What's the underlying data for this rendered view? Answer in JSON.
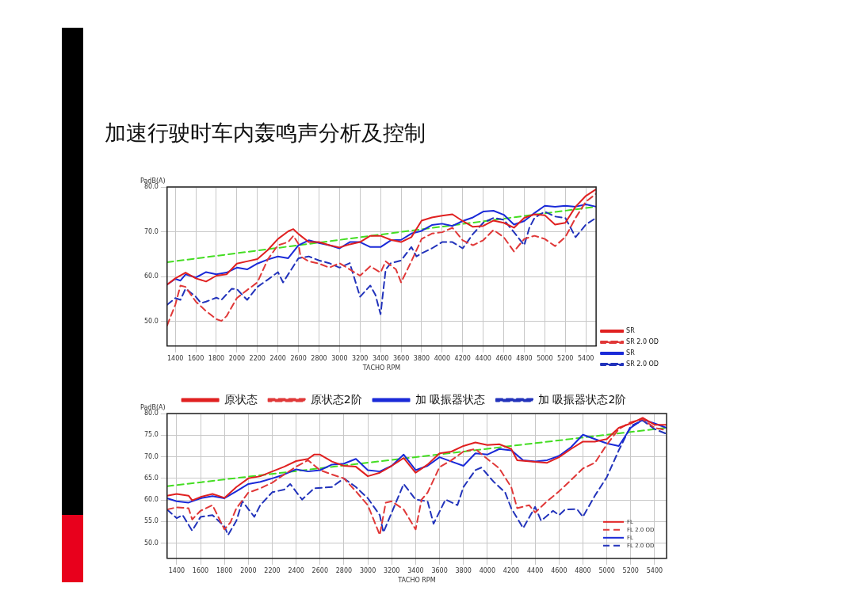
{
  "chart_data": [
    {
      "type": "line",
      "title": "加速行驶时车内轰鸣声分析及控制",
      "xlabel": "TACHO RPM",
      "ylabel": "PadB(A)",
      "xlim": [
        1320,
        5500
      ],
      "ylim": [
        44.5,
        80
      ],
      "xticks": [
        1400,
        1600,
        1800,
        2000,
        2200,
        2400,
        2600,
        2800,
        3000,
        3200,
        3400,
        3600,
        3800,
        4000,
        4200,
        4400,
        4600,
        4800,
        5000,
        5200,
        5400
      ],
      "yticks": [
        {
          "value": 50,
          "label": "50.0"
        },
        {
          "value": 60,
          "label": "60.0"
        },
        {
          "value": 70,
          "label": "70.0"
        },
        {
          "value": 80,
          "label": "80.0"
        }
      ],
      "grid": true,
      "legend": "bottom right",
      "marker": "none",
      "series": [
        {
          "name": "SR",
          "color": "#e02020",
          "line_style": "solid",
          "x": [
            1320,
            1400,
            1500,
            1600,
            1700,
            1800,
            1900,
            2000,
            2100,
            2200,
            2300,
            2400,
            2500,
            2550,
            2600,
            2700,
            2800,
            2900,
            3000,
            3100,
            3200,
            3300,
            3400,
            3500,
            3600,
            3700,
            3800,
            3900,
            4000,
            4100,
            4200,
            4300,
            4400,
            4500,
            4600,
            4700,
            4800,
            4900,
            5000,
            5100,
            5200,
            5300,
            5400,
            5500
          ],
          "values": [
            58.2,
            59.6,
            60.9,
            59.6,
            58.9,
            60.2,
            60.5,
            62.9,
            63.4,
            63.9,
            65.9,
            68.4,
            70.1,
            70.6,
            69.5,
            67.7,
            67.7,
            67.0,
            66.5,
            67.2,
            67.7,
            69.1,
            69.1,
            68.2,
            67.7,
            68.8,
            72.5,
            73.2,
            73.6,
            73.9,
            72.4,
            71.1,
            71.3,
            72.5,
            72.0,
            70.9,
            73.1,
            73.9,
            73.7,
            71.6,
            72.0,
            75.6,
            78.0,
            79.5
          ]
        },
        {
          "name": "SR 2.0 OD",
          "color": "#e03838",
          "line_style": "dashed",
          "x": [
            1320,
            1400,
            1450,
            1500,
            1600,
            1700,
            1800,
            1850,
            1900,
            2000,
            2100,
            2200,
            2300,
            2400,
            2500,
            2550,
            2600,
            2620,
            2700,
            2800,
            2900,
            3000,
            3100,
            3200,
            3300,
            3400,
            3450,
            3550,
            3600,
            3700,
            3800,
            3900,
            4000,
            4100,
            4200,
            4300,
            4400,
            4500,
            4600,
            4700,
            4800,
            4900,
            5000,
            5100,
            5200,
            5300,
            5400,
            5500
          ],
          "values": [
            49.1,
            53.7,
            58.0,
            57.7,
            54.4,
            52.3,
            50.5,
            50.1,
            51.2,
            55.2,
            57.0,
            58.7,
            63.8,
            67.0,
            67.7,
            69.1,
            67.3,
            64.5,
            63.4,
            62.9,
            62.0,
            63.0,
            61.6,
            60.2,
            62.3,
            60.9,
            63.4,
            61.6,
            58.7,
            63.4,
            68.4,
            69.6,
            69.9,
            70.9,
            68.1,
            67.0,
            68.1,
            70.4,
            68.8,
            65.6,
            68.4,
            69.1,
            68.4,
            66.8,
            68.8,
            73.1,
            76.7,
            78.5
          ]
        },
        {
          "name": "SR",
          "color": "#1a2ad8",
          "line_style": "solid",
          "x": [
            1320,
            1400,
            1450,
            1500,
            1600,
            1700,
            1800,
            1900,
            2000,
            2100,
            2200,
            2300,
            2400,
            2500,
            2600,
            2700,
            2800,
            2900,
            3000,
            3100,
            3200,
            3300,
            3400,
            3500,
            3600,
            3700,
            3800,
            3900,
            4000,
            4100,
            4200,
            4300,
            4400,
            4500,
            4600,
            4700,
            4800,
            4900,
            5000,
            5100,
            5200,
            5300,
            5400,
            5500
          ],
          "values": [
            58.2,
            59.5,
            59.1,
            60.5,
            59.8,
            61.0,
            60.5,
            60.9,
            62.0,
            61.6,
            62.9,
            63.8,
            64.5,
            64.1,
            67.0,
            68.1,
            67.5,
            67.0,
            66.3,
            67.7,
            67.7,
            66.6,
            66.6,
            68.1,
            68.2,
            69.6,
            70.2,
            71.5,
            71.8,
            71.3,
            72.4,
            73.2,
            74.5,
            74.7,
            73.8,
            71.6,
            72.4,
            74.2,
            75.8,
            75.6,
            75.8,
            75.6,
            76.1,
            75.6
          ]
        },
        {
          "name": "SR 2.0 OD",
          "color": "#2233bb",
          "line_style": "dashed",
          "x": [
            1320,
            1400,
            1450,
            1500,
            1600,
            1650,
            1700,
            1800,
            1850,
            1950,
            2000,
            2100,
            2200,
            2300,
            2400,
            2450,
            2600,
            2700,
            2800,
            2900,
            3000,
            3100,
            3200,
            3300,
            3350,
            3400,
            3450,
            3500,
            3600,
            3700,
            3750,
            3800,
            3900,
            4000,
            4100,
            4200,
            4300,
            4400,
            4500,
            4600,
            4700,
            4800,
            4850,
            4900,
            5000,
            5100,
            5200,
            5300,
            5400,
            5500
          ],
          "values": [
            53.7,
            55.2,
            54.8,
            57.3,
            55.5,
            54.1,
            54.4,
            55.3,
            54.8,
            57.3,
            57.2,
            54.8,
            57.7,
            59.3,
            61.0,
            58.7,
            64.1,
            64.5,
            63.6,
            63.0,
            62.0,
            63.0,
            55.5,
            58.0,
            55.9,
            51.6,
            61.6,
            63.0,
            63.6,
            66.6,
            64.5,
            65.2,
            66.3,
            67.7,
            67.7,
            66.3,
            69.5,
            72.0,
            73.1,
            72.7,
            69.9,
            67.0,
            70.9,
            73.1,
            74.5,
            73.4,
            73.1,
            68.8,
            71.6,
            73.1
          ]
        },
        {
          "color": "#44dd22",
          "line_style": "dashed",
          "x": [
            1320,
            5500
          ],
          "values": [
            63.2,
            75.6
          ]
        }
      ]
    },
    {
      "type": "line",
      "xlabel": "TACHO RPM",
      "ylabel": "PadB(A)",
      "xlim": [
        1320,
        5500
      ],
      "ylim": [
        46.5,
        80
      ],
      "xticks": [
        1400,
        1600,
        1800,
        2000,
        2200,
        2400,
        2600,
        2800,
        3000,
        3200,
        3400,
        3600,
        3800,
        4000,
        4200,
        4400,
        4600,
        4800,
        5000,
        5200,
        5400
      ],
      "yticks": [
        {
          "value": 50,
          "label": "50.0"
        },
        {
          "value": 55,
          "label": "55.0"
        },
        {
          "value": 60,
          "label": "60.0"
        },
        {
          "value": 65,
          "label": "65.0"
        },
        {
          "value": 70,
          "label": "70.0"
        },
        {
          "value": 75,
          "label": "75.0"
        },
        {
          "value": 80,
          "label": "80.0"
        }
      ],
      "grid": true,
      "legend": "top",
      "marker": "none",
      "annotations": [
        "FL",
        "FL 2.0 OD",
        "FL",
        "FL 2.0 OD"
      ],
      "series": [
        {
          "name": "原状态",
          "color": "#e02020",
          "line_style": "solid",
          "x": [
            1320,
            1400,
            1500,
            1530,
            1600,
            1700,
            1800,
            1900,
            2000,
            2100,
            2200,
            2300,
            2400,
            2500,
            2550,
            2600,
            2700,
            2800,
            2900,
            3000,
            3100,
            3200,
            3300,
            3400,
            3500,
            3600,
            3700,
            3800,
            3900,
            4000,
            4100,
            4200,
            4250,
            4400,
            4500,
            4600,
            4700,
            4800,
            4900,
            5000,
            5100,
            5200,
            5300,
            5400,
            5500
          ],
          "values": [
            61.0,
            61.4,
            61.0,
            59.9,
            60.7,
            61.4,
            60.5,
            63.0,
            65.0,
            65.5,
            66.6,
            67.7,
            69.0,
            69.5,
            70.5,
            70.5,
            68.9,
            67.9,
            67.7,
            65.5,
            66.3,
            67.9,
            69.7,
            66.3,
            68.2,
            70.8,
            71.2,
            72.5,
            73.3,
            72.7,
            72.9,
            71.8,
            69.2,
            68.8,
            68.6,
            69.9,
            71.8,
            73.5,
            73.5,
            74.1,
            76.7,
            77.7,
            79.0,
            77.4,
            77.4
          ]
        },
        {
          "name": "原状态2阶",
          "color": "#e03838",
          "line_style": "dashed",
          "x": [
            1320,
            1400,
            1500,
            1530,
            1600,
            1700,
            1800,
            1850,
            1900,
            2000,
            2100,
            2200,
            2300,
            2400,
            2500,
            2600,
            2700,
            2800,
            2900,
            3000,
            3100,
            3150,
            3200,
            3300,
            3400,
            3450,
            3500,
            3600,
            3700,
            3800,
            3900,
            4000,
            4100,
            4200,
            4250,
            4350,
            4400,
            4500,
            4600,
            4700,
            4800,
            4900,
            5000,
            5100,
            5200,
            5300,
            5400,
            5500
          ],
          "values": [
            57.8,
            58.3,
            58.1,
            55.5,
            57.5,
            58.8,
            53.2,
            54.8,
            58.1,
            61.7,
            62.7,
            64.0,
            65.9,
            67.7,
            69.2,
            66.9,
            65.9,
            65.0,
            62.0,
            58.8,
            51.9,
            59.4,
            59.7,
            57.8,
            53.2,
            60.1,
            61.7,
            67.6,
            69.2,
            71.2,
            71.8,
            69.5,
            67.3,
            63.0,
            58.1,
            58.8,
            57.1,
            59.7,
            62.0,
            64.6,
            67.3,
            68.6,
            72.8,
            76.4,
            78.0,
            78.7,
            76.7,
            76.1
          ]
        },
        {
          "name": "加 吸振器状态",
          "color": "#1a2ad8",
          "line_style": "solid",
          "x": [
            1320,
            1400,
            1500,
            1600,
            1700,
            1800,
            1900,
            2000,
            2100,
            2200,
            2300,
            2400,
            2500,
            2600,
            2700,
            2800,
            2900,
            3000,
            3100,
            3200,
            3300,
            3400,
            3500,
            3600,
            3700,
            3800,
            3900,
            4000,
            4100,
            4200,
            4300,
            4400,
            4500,
            4600,
            4700,
            4800,
            4900,
            5000,
            5100,
            5200,
            5300,
            5400,
            5500
          ],
          "values": [
            60.4,
            59.7,
            59.4,
            60.4,
            60.9,
            60.4,
            62.0,
            63.7,
            64.2,
            65.0,
            65.9,
            67.1,
            66.6,
            66.9,
            68.2,
            68.4,
            69.5,
            66.9,
            66.6,
            67.9,
            70.5,
            66.9,
            67.9,
            69.9,
            68.9,
            67.9,
            70.8,
            70.5,
            71.8,
            71.5,
            69.2,
            68.9,
            69.2,
            70.2,
            72.2,
            75.1,
            74.1,
            73.1,
            72.5,
            76.7,
            78.6,
            77.7,
            76.7
          ]
        },
        {
          "name": "加 吸振器状态2阶",
          "color": "#2233bb",
          "line_style": "dashed",
          "x": [
            1320,
            1400,
            1450,
            1530,
            1600,
            1700,
            1800,
            1830,
            1900,
            1950,
            2050,
            2100,
            2200,
            2300,
            2350,
            2450,
            2550,
            2700,
            2800,
            2900,
            3000,
            3100,
            3130,
            3200,
            3300,
            3400,
            3500,
            3550,
            3650,
            3750,
            3800,
            3900,
            3950,
            4050,
            4150,
            4200,
            4300,
            4400,
            4450,
            4550,
            4600,
            4650,
            4750,
            4800,
            4900,
            5000,
            5100,
            5200,
            5300,
            5400,
            5500
          ],
          "values": [
            57.8,
            55.8,
            56.5,
            52.9,
            56.1,
            56.5,
            53.9,
            51.9,
            55.2,
            59.7,
            56.1,
            58.8,
            61.8,
            62.4,
            63.7,
            60.1,
            62.7,
            63.0,
            65.0,
            63.0,
            60.4,
            56.5,
            52.5,
            57.1,
            63.7,
            60.1,
            59.7,
            54.5,
            60.1,
            58.8,
            63.0,
            66.9,
            67.5,
            64.3,
            61.7,
            58.1,
            53.5,
            58.4,
            55.2,
            57.5,
            56.5,
            57.8,
            57.9,
            56.1,
            61.0,
            65.3,
            71.5,
            77.1,
            78.4,
            76.4,
            75.3
          ]
        },
        {
          "color": "#44dd22",
          "line_style": "dashed",
          "x": [
            1320,
            5500
          ],
          "values": [
            63.2,
            76.7
          ]
        }
      ]
    }
  ]
}
